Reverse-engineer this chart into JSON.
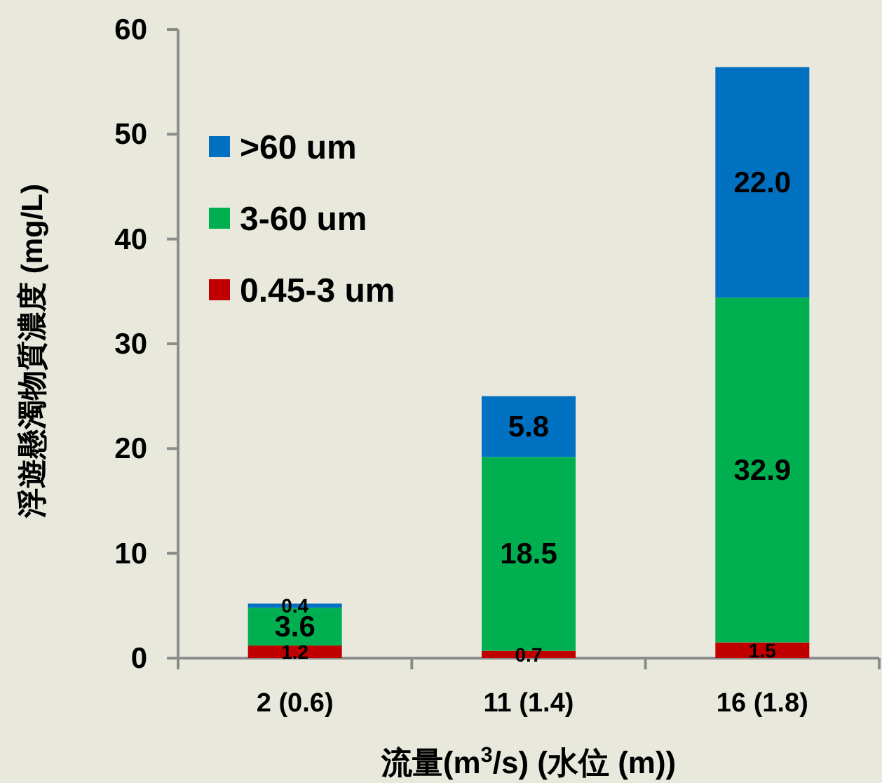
{
  "chart_data": {
    "type": "bar",
    "stacked": true,
    "categories": [
      "2 (0.6)",
      "11 (1.4)",
      "16 (1.8)"
    ],
    "xlabel": "流量(m$^{3}$/s) (水位 (m))",
    "ylabel": "浮遊懸濁物質濃度 (mg/L)",
    "ylim": [
      0,
      60
    ],
    "yticks": [
      0,
      10,
      20,
      30,
      40,
      50,
      60
    ],
    "legend": "top left",
    "series": [
      {
        "name": "0.45-3 um",
        "color": "#c00000",
        "values": [
          1.2,
          0.7,
          1.5
        ],
        "value_labels": [
          "1.2",
          "0.7",
          "1.5"
        ]
      },
      {
        "name": "3-60 um",
        "color": "#00b050",
        "values": [
          3.6,
          18.5,
          32.9
        ],
        "value_labels": [
          "3.6",
          "18.5",
          "32.9"
        ]
      },
      {
        "name": ">60 um",
        "color": "#0070c0",
        "values": [
          0.4,
          5.8,
          22.0
        ],
        "value_labels": [
          "0.4",
          "5.8",
          "22.0"
        ]
      }
    ]
  }
}
